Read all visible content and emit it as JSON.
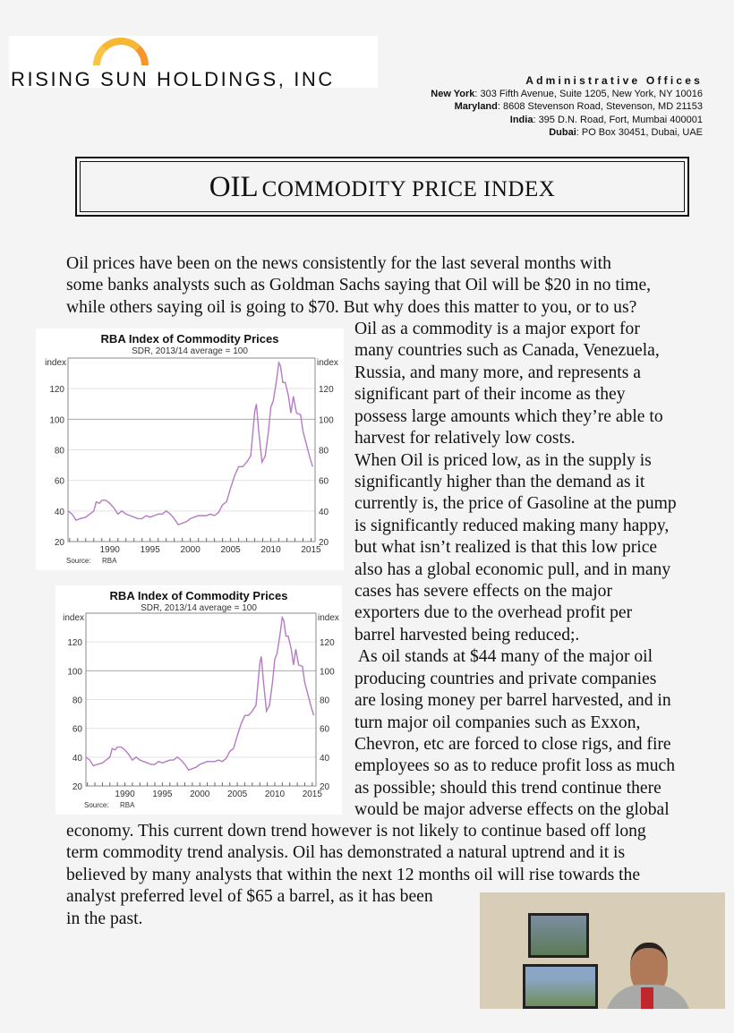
{
  "header": {
    "company_name": "RISING SUN HOLDINGS, INC",
    "offices_heading": "Administrative Offices",
    "offices": [
      {
        "label": "New York",
        "address": ": 303 Fifth Avenue, Suite 1205, New York, NY 10016"
      },
      {
        "label": "Maryland",
        "address": ": 8608 Stevenson Road, Stevenson, MD 21153"
      },
      {
        "label": "India",
        "address": ": 395 D.N. Road, Fort, Mumbai 400001"
      },
      {
        "label": "Dubai",
        "address": ": PO Box 30451, Dubai, UAE"
      }
    ]
  },
  "title": {
    "first": "OIL",
    "rest": "COMMODITY PRICE INDEX"
  },
  "body": {
    "intro_lines": [
      "Oil prices have been on the news consistently for the last several months with",
      "some banks analysts such as Goldman Sachs saying that Oil will be $20 in no time,",
      "while others saying oil is going to $70. But why does this matter to you, or to us?"
    ],
    "column_lines": [
      "Oil as a commodity is a major export for",
      "many countries such as Canada, Venezuela,",
      "Russia, and many more, and represents a",
      "significant part of their income as they",
      "possess large amounts which they’re able to",
      "harvest for relatively low costs.",
      "When Oil is priced low, as in the supply is",
      "significantly higher than the demand as it",
      "currently is, the price of Gasoline at the pump",
      "is significantly reduced making many happy,",
      "but what isn’t realized is that this low price",
      "also has a global economic pull, and in many",
      "cases has severe effects on the major",
      "exporters due to the overhead profit per",
      "barrel harvested being reduced;.",
      " As oil stands at $44 many of the major oil",
      "producing countries and private companies",
      "are losing money per barrel harvested, and in",
      "turn major oil companies such as Exxon,",
      "Chevron, etc are forced to close rigs, and fire",
      "employees so as to reduce profit loss as much",
      "as possible; should this trend continue there",
      "would be major adverse effects on the global"
    ],
    "closing_lines": [
      "economy. This current down trend however is not likely to continue based off long",
      "term commodity trend analysis. Oil has demonstrated a natural uptrend and it is",
      "believed by many analysts that within the next 12 months oil will rise towards the",
      "analyst preferred level of $65 a barrel, as it has been",
      "in the past."
    ]
  },
  "chart_data": [
    {
      "type": "line",
      "title": "RBA Index of Commodity Prices",
      "subtitle": "SDR, 2013/14 average = 100",
      "ylabel_left": "index",
      "ylabel_right": "index",
      "source_label": "Source:",
      "source": "RBA",
      "xlim": [
        1984.8,
        2015.5
      ],
      "ylim": [
        20,
        140
      ],
      "xticks": [
        1990,
        1995,
        2000,
        2005,
        2010,
        2015
      ],
      "yticks": [
        20,
        40,
        60,
        80,
        100,
        120
      ],
      "grid": true,
      "line_color": "#b57bc4",
      "x": [
        1984.8,
        1985.3,
        1985.8,
        1986.3,
        1987,
        1987.5,
        1988,
        1988.3,
        1988.7,
        1989,
        1989.5,
        1990,
        1990.5,
        1991,
        1991.5,
        1992,
        1992.5,
        1993,
        1993.5,
        1994,
        1994.5,
        1995,
        1995.5,
        1996,
        1996.5,
        1997,
        1997.5,
        1998,
        1998.5,
        1999,
        1999.5,
        2000,
        2000.5,
        2001,
        2001.5,
        2002,
        2002.5,
        2003,
        2003.5,
        2004,
        2004.5,
        2005,
        2005.5,
        2006,
        2006.5,
        2007,
        2007.5,
        2008,
        2008.2,
        2008.5,
        2008.9,
        2009.3,
        2009.7,
        2010,
        2010.3,
        2010.7,
        2011,
        2011.2,
        2011.5,
        2011.8,
        2012.2,
        2012.5,
        2012.8,
        2013.2,
        2013.7,
        2014,
        2014.5,
        2014.9,
        2015.2
      ],
      "y": [
        40,
        38,
        34,
        35,
        36,
        38,
        40,
        46,
        45,
        47,
        47,
        45,
        42,
        38,
        40,
        38,
        37,
        36,
        35,
        35,
        37,
        36,
        37,
        38,
        38,
        40,
        38,
        35,
        31,
        32,
        33,
        35,
        36,
        37,
        37,
        37,
        38,
        37,
        39,
        44,
        46,
        55,
        63,
        69,
        69,
        72,
        76,
        105,
        110,
        92,
        72,
        76,
        92,
        108,
        112,
        125,
        137,
        135,
        124,
        124,
        115,
        104,
        115,
        104,
        103,
        92,
        82,
        74,
        69
      ]
    },
    {
      "type": "line",
      "title": "RBA Index of Commodity Prices",
      "subtitle": "SDR, 2013/14 average = 100",
      "ylabel_left": "index",
      "ylabel_right": "index",
      "source_label": "Source:",
      "source": "RBA",
      "xlim": [
        1984.8,
        2015.5
      ],
      "ylim": [
        20,
        140
      ],
      "xticks": [
        1990,
        1995,
        2000,
        2005,
        2010,
        2015
      ],
      "yticks": [
        20,
        40,
        60,
        80,
        100,
        120
      ],
      "grid": true,
      "line_color": "#b57bc4",
      "x": [
        1984.8,
        1985.3,
        1985.8,
        1986.3,
        1987,
        1987.5,
        1988,
        1988.3,
        1988.7,
        1989,
        1989.5,
        1990,
        1990.5,
        1991,
        1991.5,
        1992,
        1992.5,
        1993,
        1993.5,
        1994,
        1994.5,
        1995,
        1995.5,
        1996,
        1996.5,
        1997,
        1997.5,
        1998,
        1998.5,
        1999,
        1999.5,
        2000,
        2000.5,
        2001,
        2001.5,
        2002,
        2002.5,
        2003,
        2003.5,
        2004,
        2004.5,
        2005,
        2005.5,
        2006,
        2006.5,
        2007,
        2007.5,
        2008,
        2008.2,
        2008.5,
        2008.9,
        2009.3,
        2009.7,
        2010,
        2010.3,
        2010.7,
        2011,
        2011.2,
        2011.5,
        2011.8,
        2012.2,
        2012.5,
        2012.8,
        2013.2,
        2013.7,
        2014,
        2014.5,
        2014.9,
        2015.2
      ],
      "y": [
        40,
        38,
        34,
        35,
        36,
        38,
        40,
        46,
        45,
        47,
        47,
        45,
        42,
        38,
        40,
        38,
        37,
        36,
        35,
        35,
        37,
        36,
        37,
        38,
        38,
        40,
        38,
        35,
        31,
        32,
        33,
        35,
        36,
        37,
        37,
        37,
        38,
        37,
        39,
        44,
        46,
        55,
        63,
        69,
        69,
        72,
        76,
        105,
        110,
        92,
        72,
        76,
        92,
        108,
        112,
        125,
        137,
        135,
        124,
        124,
        115,
        104,
        115,
        104,
        103,
        92,
        82,
        74,
        69
      ]
    }
  ]
}
